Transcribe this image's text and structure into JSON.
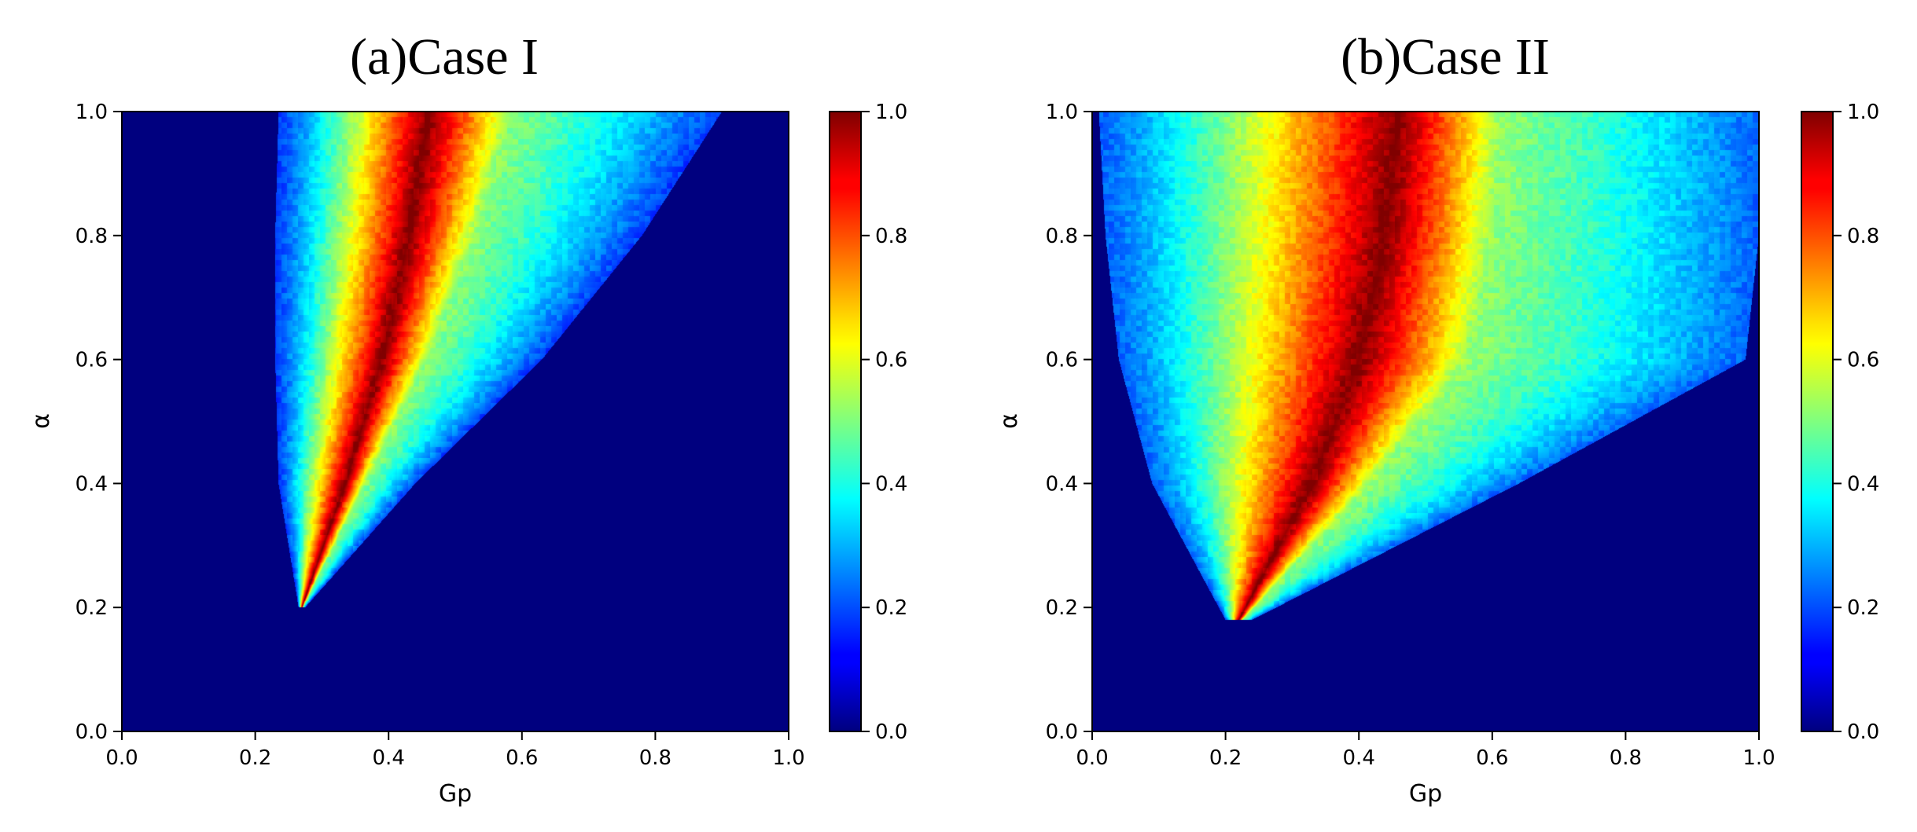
{
  "chart_data": [
    {
      "type": "heatmap",
      "title": "(a)Case I",
      "xlabel": "Gp",
      "ylabel": "α",
      "xlim": [
        0,
        1
      ],
      "ylim": [
        0,
        1
      ],
      "xticks": [
        "0.0",
        "0.2",
        "0.4",
        "0.6",
        "0.8",
        "1.0"
      ],
      "yticks": [
        "0.0",
        "0.2",
        "0.4",
        "0.6",
        "0.8",
        "1.0"
      ],
      "colormap": "jet",
      "colorbar": {
        "range": [
          0,
          1
        ],
        "ticks": [
          "0.0",
          "0.2",
          "0.4",
          "0.6",
          "0.8",
          "1.0"
        ],
        "placement": "right"
      },
      "grid": false,
      "nonzero_region": [
        {
          "alpha": 0.2,
          "gp_min": 0.265,
          "gp_peak": 0.27,
          "gp_max": 0.275
        },
        {
          "alpha": 0.4,
          "gp_min": 0.235,
          "gp_peak": 0.335,
          "gp_max": 0.44
        },
        {
          "alpha": 0.6,
          "gp_min": 0.23,
          "gp_peak": 0.39,
          "gp_max": 0.63
        },
        {
          "alpha": 0.8,
          "gp_min": 0.23,
          "gp_peak": 0.43,
          "gp_max": 0.78
        },
        {
          "alpha": 1.0,
          "gp_min": 0.235,
          "gp_peak": 0.46,
          "gp_max": 0.9
        }
      ],
      "peak_value": 1.0,
      "edge_value": 0.18
    },
    {
      "type": "heatmap",
      "title": "(b)Case II",
      "xlabel": "Gp",
      "ylabel": "α",
      "xlim": [
        0,
        1
      ],
      "ylim": [
        0,
        1
      ],
      "xticks": [
        "0.0",
        "0.2",
        "0.4",
        "0.6",
        "0.8",
        "1.0"
      ],
      "yticks": [
        "0.0",
        "0.2",
        "0.4",
        "0.6",
        "0.8",
        "1.0"
      ],
      "colormap": "jet",
      "colorbar": {
        "range": [
          0,
          1
        ],
        "ticks": [
          "0.0",
          "0.2",
          "0.4",
          "0.6",
          "0.8",
          "1.0"
        ],
        "placement": "right"
      },
      "grid": false,
      "nonzero_region": [
        {
          "alpha": 0.18,
          "gp_min": 0.2,
          "gp_peak": 0.22,
          "gp_max": 0.24
        },
        {
          "alpha": 0.4,
          "gp_min": 0.09,
          "gp_peak": 0.33,
          "gp_max": 0.64
        },
        {
          "alpha": 0.6,
          "gp_min": 0.04,
          "gp_peak": 0.4,
          "gp_max": 0.98
        },
        {
          "alpha": 0.8,
          "gp_min": 0.02,
          "gp_peak": 0.44,
          "gp_max": 1.0
        },
        {
          "alpha": 1.0,
          "gp_min": 0.01,
          "gp_peak": 0.46,
          "gp_max": 1.0
        }
      ],
      "peak_value": 1.0,
      "edge_value": 0.22
    }
  ]
}
